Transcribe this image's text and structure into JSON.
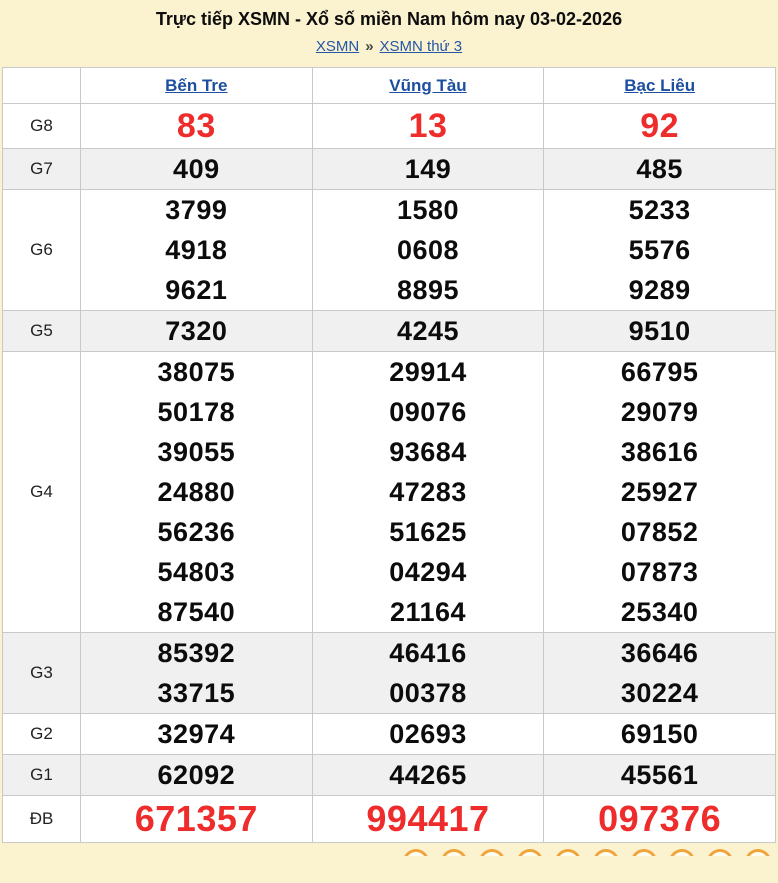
{
  "header": {
    "title": "Trực tiếp XSMN - Xổ số miền Nam hôm nay 03-02-2026",
    "breadcrumb": {
      "home": "XSMN",
      "separator": "»",
      "current": "XSMN thứ 3"
    }
  },
  "table": {
    "provinces": [
      "Bến Tre",
      "Vũng Tàu",
      "Bạc Liêu"
    ],
    "rows": [
      {
        "label": "G8",
        "style": "g8",
        "shade": false,
        "cells": [
          [
            "83"
          ],
          [
            "13"
          ],
          [
            "92"
          ]
        ]
      },
      {
        "label": "G7",
        "style": "",
        "shade": true,
        "cells": [
          [
            "409"
          ],
          [
            "149"
          ],
          [
            "485"
          ]
        ]
      },
      {
        "label": "G6",
        "style": "",
        "shade": false,
        "cells": [
          [
            "3799",
            "4918",
            "9621"
          ],
          [
            "1580",
            "0608",
            "8895"
          ],
          [
            "5233",
            "5576",
            "9289"
          ]
        ]
      },
      {
        "label": "G5",
        "style": "",
        "shade": true,
        "cells": [
          [
            "7320"
          ],
          [
            "4245"
          ],
          [
            "9510"
          ]
        ]
      },
      {
        "label": "G4",
        "style": "",
        "shade": false,
        "cells": [
          [
            "38075",
            "50178",
            "39055",
            "24880",
            "56236",
            "54803",
            "87540"
          ],
          [
            "29914",
            "09076",
            "93684",
            "47283",
            "51625",
            "04294",
            "21164"
          ],
          [
            "66795",
            "29079",
            "38616",
            "25927",
            "07852",
            "07873",
            "25340"
          ]
        ]
      },
      {
        "label": "G3",
        "style": "",
        "shade": true,
        "cells": [
          [
            "85392",
            "33715"
          ],
          [
            "46416",
            "00378"
          ],
          [
            "36646",
            "30224"
          ]
        ]
      },
      {
        "label": "G2",
        "style": "",
        "shade": false,
        "cells": [
          [
            "32974"
          ],
          [
            "02693"
          ],
          [
            "69150"
          ]
        ]
      },
      {
        "label": "G1",
        "style": "",
        "shade": true,
        "cells": [
          [
            "62092"
          ],
          [
            "44265"
          ],
          [
            "45561"
          ]
        ]
      },
      {
        "label": "ĐB",
        "style": "db",
        "shade": false,
        "cells": [
          [
            "671357"
          ],
          [
            "994417"
          ],
          [
            "097376"
          ]
        ]
      }
    ]
  },
  "colors": {
    "page_background": "#fbf2cf",
    "accent_red": "#ee2c2c",
    "link_blue": "#2456a8",
    "shade_gray": "#f0f0f0",
    "ball_orange": "#f0a43c"
  }
}
